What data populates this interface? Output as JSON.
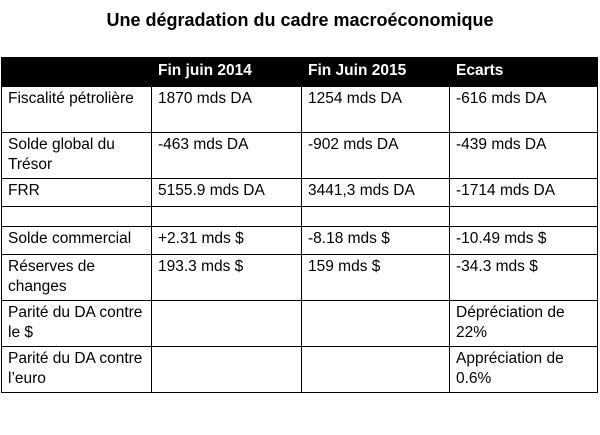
{
  "title": "Une dégradation du cadre macroéconomique",
  "table": {
    "headers": [
      "",
      "Fin juin 2014",
      "Fin Juin 2015",
      "Ecarts"
    ],
    "rows": [
      [
        "Fiscalité pétrolière",
        "1870 mds DA",
        "1254 mds DA",
        "-616 mds DA"
      ],
      [
        "Solde global du Trésor",
        "-463 mds DA",
        "-902 mds DA",
        "-439 mds DA"
      ],
      [
        "FRR",
        "5155.9 mds DA",
        "3441,3 mds DA",
        "-1714 mds DA"
      ],
      [
        "",
        "",
        "",
        ""
      ],
      [
        "Solde commercial",
        "+2.31 mds $",
        "-8.18  mds $",
        "-10.49 mds $"
      ],
      [
        "Réserves de changes",
        "193.3 mds  $",
        "159 mds $",
        "-34.3 mds $"
      ],
      [
        "Parité du DA contre le $",
        "",
        "",
        "Dépréciation de 22%"
      ],
      [
        "Parité du DA contre l’euro",
        "",
        "",
        "Appréciation de 0.6%"
      ]
    ]
  },
  "colors": {
    "header_background": "#000000",
    "header_text": "#ffffff",
    "border": "#000000"
  }
}
